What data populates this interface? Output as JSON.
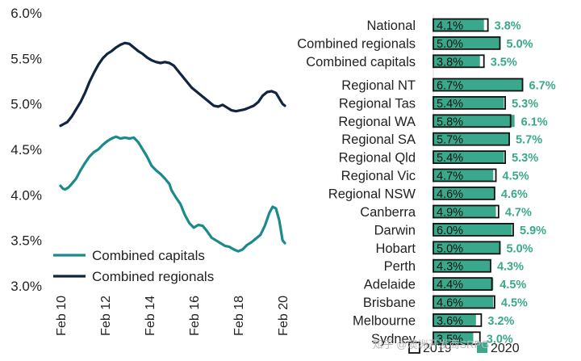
{
  "watermark": "知乎 @澳洲开发商SRPG",
  "chart_data": [
    {
      "type": "line",
      "title": "",
      "xlabel": "",
      "ylabel": "",
      "x_ticks": [
        "Feb 10",
        "Feb 12",
        "Feb 14",
        "Feb 16",
        "Feb 18",
        "Feb 20"
      ],
      "y_ticks": [
        "3.0%",
        "3.5%",
        "4.0%",
        "4.5%",
        "5.0%",
        "5.5%",
        "6.0%"
      ],
      "xlim": [
        2010.0,
        2020.1
      ],
      "ylim": [
        3.0,
        6.0
      ],
      "grid": false,
      "legend_position": "bottom-left",
      "series": [
        {
          "name": "Combined capitals",
          "color": "#1a8a8a",
          "points": [
            [
              2010.0,
              4.1
            ],
            [
              2010.1,
              4.07
            ],
            [
              2010.2,
              4.06
            ],
            [
              2010.35,
              4.08
            ],
            [
              2010.5,
              4.12
            ],
            [
              2010.7,
              4.18
            ],
            [
              2010.9,
              4.27
            ],
            [
              2011.1,
              4.35
            ],
            [
              2011.3,
              4.42
            ],
            [
              2011.5,
              4.47
            ],
            [
              2011.7,
              4.5
            ],
            [
              2011.9,
              4.55
            ],
            [
              2012.1,
              4.59
            ],
            [
              2012.3,
              4.62
            ],
            [
              2012.5,
              4.64
            ],
            [
              2012.7,
              4.62
            ],
            [
              2012.9,
              4.63
            ],
            [
              2013.1,
              4.62
            ],
            [
              2013.3,
              4.63
            ],
            [
              2013.5,
              4.58
            ],
            [
              2013.7,
              4.5
            ],
            [
              2013.9,
              4.42
            ],
            [
              2014.1,
              4.32
            ],
            [
              2014.3,
              4.27
            ],
            [
              2014.5,
              4.23
            ],
            [
              2014.7,
              4.18
            ],
            [
              2014.9,
              4.12
            ],
            [
              2015.0,
              4.05
            ],
            [
              2015.2,
              3.97
            ],
            [
              2015.4,
              3.9
            ],
            [
              2015.6,
              3.78
            ],
            [
              2015.8,
              3.69
            ],
            [
              2016.0,
              3.64
            ],
            [
              2016.2,
              3.67
            ],
            [
              2016.4,
              3.66
            ],
            [
              2016.6,
              3.6
            ],
            [
              2016.8,
              3.53
            ],
            [
              2017.0,
              3.5
            ],
            [
              2017.2,
              3.47
            ],
            [
              2017.4,
              3.44
            ],
            [
              2017.6,
              3.43
            ],
            [
              2017.8,
              3.4
            ],
            [
              2018.0,
              3.38
            ],
            [
              2018.2,
              3.4
            ],
            [
              2018.4,
              3.45
            ],
            [
              2018.6,
              3.48
            ],
            [
              2018.8,
              3.52
            ],
            [
              2019.0,
              3.56
            ],
            [
              2019.2,
              3.66
            ],
            [
              2019.4,
              3.8
            ],
            [
              2019.55,
              3.87
            ],
            [
              2019.7,
              3.85
            ],
            [
              2019.85,
              3.72
            ],
            [
              2020.0,
              3.5
            ],
            [
              2020.1,
              3.47
            ]
          ]
        },
        {
          "name": "Combined regionals",
          "color": "#10253f",
          "points": [
            [
              2010.0,
              4.76
            ],
            [
              2010.15,
              4.78
            ],
            [
              2010.3,
              4.8
            ],
            [
              2010.5,
              4.86
            ],
            [
              2010.7,
              4.94
            ],
            [
              2010.9,
              5.02
            ],
            [
              2011.1,
              5.12
            ],
            [
              2011.3,
              5.24
            ],
            [
              2011.5,
              5.34
            ],
            [
              2011.7,
              5.43
            ],
            [
              2011.9,
              5.5
            ],
            [
              2012.1,
              5.55
            ],
            [
              2012.3,
              5.58
            ],
            [
              2012.5,
              5.62
            ],
            [
              2012.7,
              5.65
            ],
            [
              2012.9,
              5.67
            ],
            [
              2013.1,
              5.66
            ],
            [
              2013.3,
              5.62
            ],
            [
              2013.5,
              5.58
            ],
            [
              2013.7,
              5.55
            ],
            [
              2013.9,
              5.51
            ],
            [
              2014.1,
              5.48
            ],
            [
              2014.3,
              5.46
            ],
            [
              2014.5,
              5.45
            ],
            [
              2014.7,
              5.46
            ],
            [
              2014.9,
              5.45
            ],
            [
              2015.1,
              5.42
            ],
            [
              2015.3,
              5.36
            ],
            [
              2015.5,
              5.3
            ],
            [
              2015.7,
              5.24
            ],
            [
              2015.9,
              5.18
            ],
            [
              2016.1,
              5.14
            ],
            [
              2016.3,
              5.1
            ],
            [
              2016.5,
              5.06
            ],
            [
              2016.7,
              5.02
            ],
            [
              2016.9,
              4.98
            ],
            [
              2017.1,
              4.97
            ],
            [
              2017.3,
              4.99
            ],
            [
              2017.5,
              4.96
            ],
            [
              2017.7,
              4.93
            ],
            [
              2017.9,
              4.92
            ],
            [
              2018.1,
              4.93
            ],
            [
              2018.3,
              4.94
            ],
            [
              2018.5,
              4.96
            ],
            [
              2018.7,
              4.98
            ],
            [
              2018.9,
              5.02
            ],
            [
              2019.1,
              5.09
            ],
            [
              2019.3,
              5.13
            ],
            [
              2019.5,
              5.14
            ],
            [
              2019.7,
              5.12
            ],
            [
              2019.85,
              5.06
            ],
            [
              2020.0,
              5.0
            ],
            [
              2020.1,
              4.98
            ]
          ]
        }
      ]
    },
    {
      "type": "bar",
      "orientation": "horizontal",
      "title": "",
      "xlabel": "",
      "ylabel": "",
      "legend_position": "bottom",
      "series_names": [
        "2019",
        "2020"
      ],
      "series_colors": {
        "2019": "#ffffff",
        "2020": "#3aa88a"
      },
      "value_label_color": "#3aa88a",
      "groups": [
        {
          "items": [
            {
              "category": "National",
              "v2019": 4.1,
              "v2020": 3.8,
              "label2019": "4.1%",
              "label2020": "3.8%"
            },
            {
              "category": "Combined regionals",
              "v2019": 5.0,
              "v2020": 5.0,
              "label2019": "5.0%",
              "label2020": "5.0%"
            },
            {
              "category": "Combined capitals",
              "v2019": 3.8,
              "v2020": 3.5,
              "label2019": "3.8%",
              "label2020": "3.5%"
            }
          ]
        },
        {
          "items": [
            {
              "category": "Regional NT",
              "v2019": 6.7,
              "v2020": 6.7,
              "label2019": "6.7%",
              "label2020": "6.7%"
            },
            {
              "category": "Regional Tas",
              "v2019": 5.4,
              "v2020": 5.3,
              "label2019": "5.4%",
              "label2020": "5.3%"
            },
            {
              "category": "Regional WA",
              "v2019": 5.8,
              "v2020": 6.1,
              "label2019": "5.8%",
              "label2020": "6.1%"
            },
            {
              "category": "Regional SA",
              "v2019": 5.7,
              "v2020": 5.7,
              "label2019": "5.7%",
              "label2020": "5.7%"
            },
            {
              "category": "Regional Qld",
              "v2019": 5.4,
              "v2020": 5.3,
              "label2019": "5.4%",
              "label2020": "5.3%"
            },
            {
              "category": "Regional Vic",
              "v2019": 4.7,
              "v2020": 4.5,
              "label2019": "4.7%",
              "label2020": "4.5%"
            },
            {
              "category": "Regional NSW",
              "v2019": 4.6,
              "v2020": 4.6,
              "label2019": "4.6%",
              "label2020": "4.6%"
            }
          ]
        },
        {
          "items": [
            {
              "category": "Canberra",
              "v2019": 4.9,
              "v2020": 4.7,
              "label2019": "4.9%",
              "label2020": "4.7%"
            },
            {
              "category": "Darwin",
              "v2019": 6.0,
              "v2020": 5.9,
              "label2019": "6.0%",
              "label2020": "5.9%"
            },
            {
              "category": "Hobart",
              "v2019": 5.0,
              "v2020": 5.0,
              "label2019": "5.0%",
              "label2020": "5.0%"
            },
            {
              "category": "Perth",
              "v2019": 4.3,
              "v2020": 4.3,
              "label2019": "4.3%",
              "label2020": "4.3%"
            },
            {
              "category": "Adelaide",
              "v2019": 4.4,
              "v2020": 4.5,
              "label2019": "4.4%",
              "label2020": "4.5%"
            },
            {
              "category": "Brisbane",
              "v2019": 4.6,
              "v2020": 4.5,
              "label2019": "4.6%",
              "label2020": "4.5%"
            },
            {
              "category": "Melbourne",
              "v2019": 3.6,
              "v2020": 3.2,
              "label2019": "3.6%",
              "label2020": "3.2%"
            },
            {
              "category": "Sydney",
              "v2019": 3.5,
              "v2020": 3.0,
              "label2019": "3.5%",
              "label2020": "3.0%"
            }
          ]
        }
      ]
    }
  ]
}
